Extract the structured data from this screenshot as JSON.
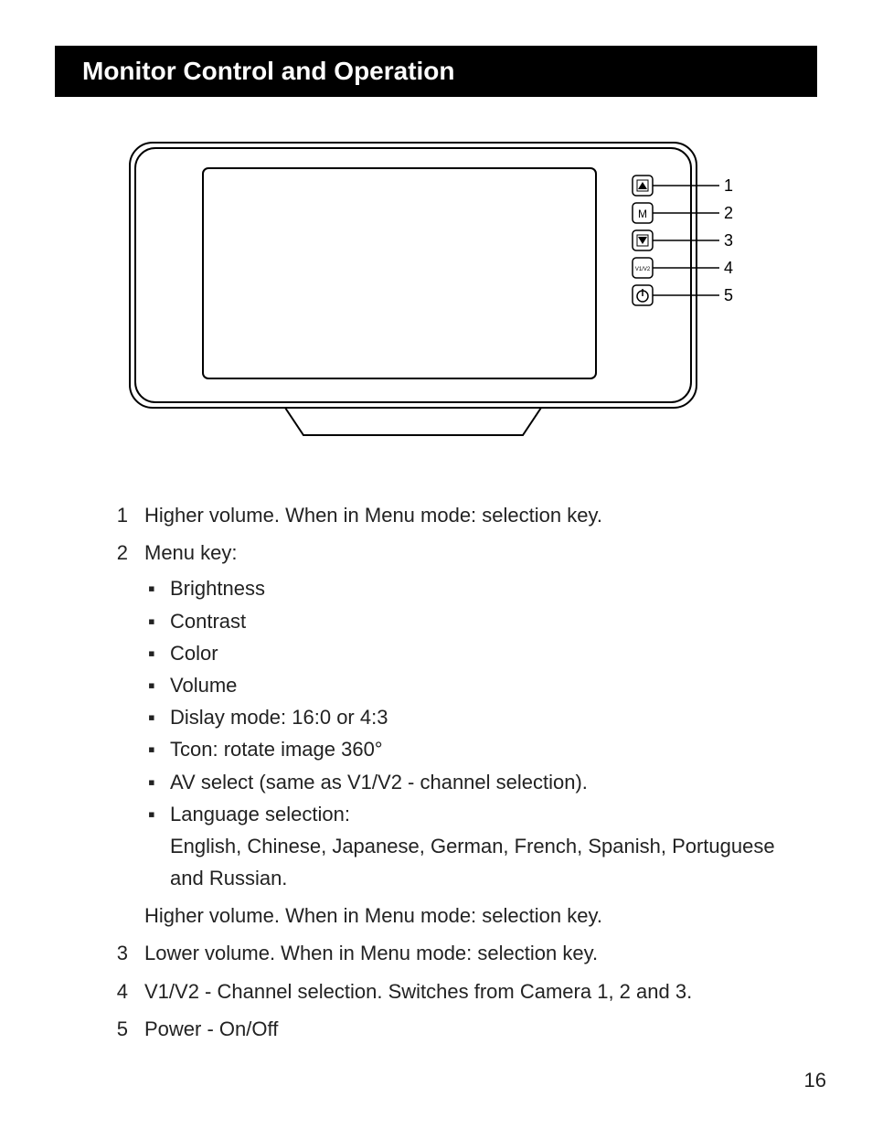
{
  "title": "Monitor Control and Operation",
  "diagram": {
    "buttons": [
      {
        "name": "up-icon",
        "label": "1"
      },
      {
        "name": "m-icon",
        "label": "2"
      },
      {
        "name": "down-icon",
        "label": "3"
      },
      {
        "name": "v1v2-icon",
        "label": "4"
      },
      {
        "name": "power-icon",
        "label": "5"
      }
    ],
    "stroke": "#000000",
    "bg": "#ffffff"
  },
  "items": [
    {
      "num": "1",
      "text": "Higher volume. When in Menu mode: selection key."
    },
    {
      "num": "2",
      "text": "Menu key:",
      "bullets": [
        "Brightness",
        "Contrast",
        "Color",
        "Volume",
        "Dislay mode: 16:0 or 4:3",
        "Tcon: rotate image 360°",
        "AV select (same as V1/V2 - channel selection).",
        "Language selection:\nEnglish, Chinese, Japanese, German, French, Spanish, Portuguese and Russian."
      ],
      "after": "Higher volume. When in Menu mode: selection key."
    },
    {
      "num": "3",
      "text": "Lower volume. When in Menu mode: selection key."
    },
    {
      "num": "4",
      "text": "V1/V2 - Channel selection. Switches from Camera 1, 2 and 3."
    },
    {
      "num": "5",
      "text": "Power - On/Off"
    }
  ],
  "bullet_mark": "▪",
  "page_number": "16"
}
